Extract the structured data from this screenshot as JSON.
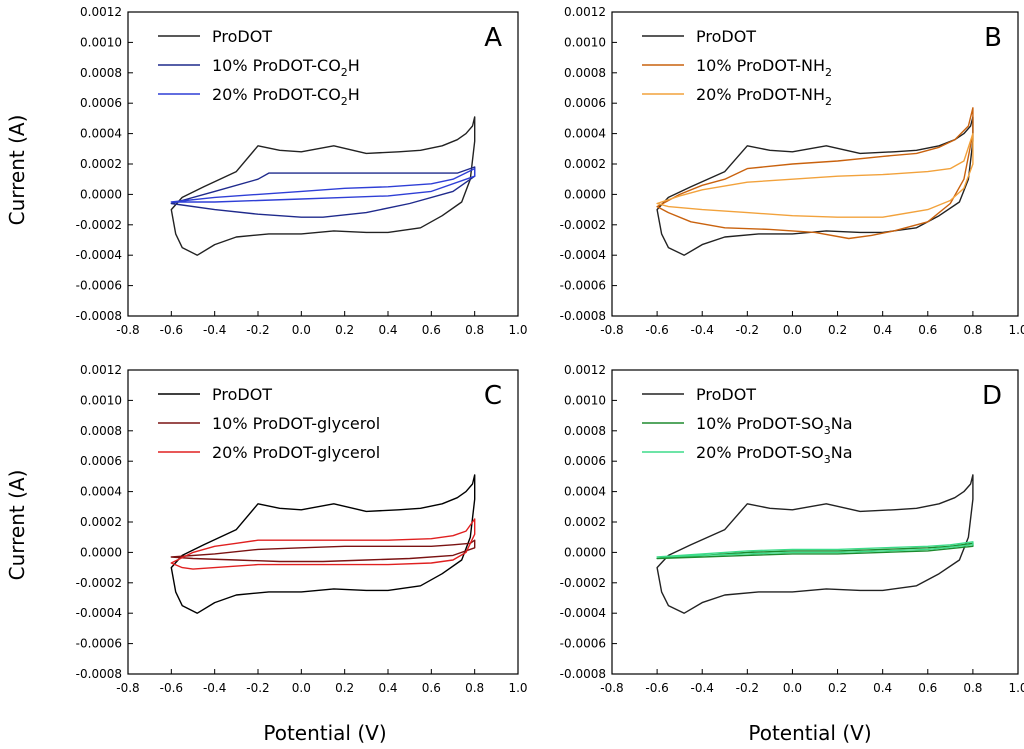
{
  "figure": {
    "y_axis_title": "Current (A)",
    "x_axis_title": "Potential (V)"
  },
  "chart_data": [
    {
      "type": "line",
      "panel_label": "A",
      "xlabel": "Potential (V)",
      "ylabel": "Current (A)",
      "xlim": [
        -0.8,
        1.0
      ],
      "ylim": [
        -0.0008,
        0.0012
      ],
      "x_ticks": [
        "-0.8",
        "-0.6",
        "-0.4",
        "-0.2",
        "0.0",
        "0.2",
        "0.4",
        "0.6",
        "0.8",
        "1.0"
      ],
      "y_ticks": [
        "-0.0008",
        "-0.0006",
        "-0.0004",
        "-0.0002",
        "0.0000",
        "0.0002",
        "0.0004",
        "0.0006",
        "0.0008",
        "0.0010",
        "0.0012"
      ],
      "legend": [
        {
          "label": "ProDOT",
          "sub": "",
          "tail": "",
          "color": "#222222"
        },
        {
          "label": "10% ProDOT-CO",
          "sub": "2",
          "tail": "H",
          "color": "#1f2a8c"
        },
        {
          "label": "20% ProDOT-CO",
          "sub": "2",
          "tail": "H",
          "color": "#2f3fd6"
        }
      ],
      "series": [
        {
          "name": "ProDOT",
          "color": "#222222",
          "x": [
            -0.6,
            -0.55,
            -0.45,
            -0.3,
            -0.2,
            -0.1,
            0.0,
            0.15,
            0.3,
            0.45,
            0.55,
            0.65,
            0.72,
            0.76,
            0.79,
            0.8,
            0.8,
            0.78,
            0.74,
            0.65,
            0.55,
            0.4,
            0.3,
            0.15,
            0.0,
            -0.15,
            -0.3,
            -0.4,
            -0.48,
            -0.55,
            -0.58,
            -0.6
          ],
          "y": [
            -0.0001,
            -2e-05,
            5e-05,
            0.00015,
            0.00032,
            0.00029,
            0.00028,
            0.00032,
            0.00027,
            0.00028,
            0.00029,
            0.00032,
            0.00036,
            0.0004,
            0.00045,
            0.00051,
            0.00035,
            0.0001,
            -5e-05,
            -0.00014,
            -0.00022,
            -0.00025,
            -0.00025,
            -0.00024,
            -0.00026,
            -0.00026,
            -0.00028,
            -0.00033,
            -0.0004,
            -0.00035,
            -0.00026,
            -0.0001
          ]
        },
        {
          "name": "10% ProDOT-CO2H",
          "color": "#1f2a8c",
          "x": [
            -0.6,
            -0.4,
            -0.2,
            -0.15,
            -0.1,
            0.0,
            0.2,
            0.4,
            0.6,
            0.72,
            0.8,
            0.8,
            0.7,
            0.5,
            0.3,
            0.1,
            0.0,
            -0.2,
            -0.4,
            -0.6
          ],
          "y": [
            -6e-05,
            2e-05,
            0.0001,
            0.00014,
            0.00014,
            0.00014,
            0.00014,
            0.00014,
            0.00014,
            0.00014,
            0.00018,
            0.00012,
            2e-05,
            -6e-05,
            -0.00012,
            -0.00015,
            -0.00015,
            -0.00013,
            -0.0001,
            -6e-05
          ]
        },
        {
          "name": "20% ProDOT-CO2H",
          "color": "#2f3fd6",
          "x": [
            -0.6,
            -0.4,
            -0.2,
            0.0,
            0.2,
            0.4,
            0.6,
            0.7,
            0.8,
            0.8,
            0.6,
            0.4,
            0.2,
            0.0,
            -0.2,
            -0.4,
            -0.6
          ],
          "y": [
            -5e-05,
            -2e-05,
            0.0,
            2e-05,
            4e-05,
            5e-05,
            7e-05,
            0.0001,
            0.00017,
            0.00012,
            2e-05,
            -1e-05,
            -2e-05,
            -3e-05,
            -4e-05,
            -5e-05,
            -5e-05
          ]
        }
      ]
    },
    {
      "type": "line",
      "panel_label": "B",
      "xlabel": "Potential (V)",
      "ylabel": "Current (A)",
      "xlim": [
        -0.8,
        1.0
      ],
      "ylim": [
        -0.0008,
        0.0012
      ],
      "x_ticks": [
        "-0.8",
        "-0.6",
        "-0.4",
        "-0.2",
        "0.0",
        "0.2",
        "0.4",
        "0.6",
        "0.8",
        "1.0"
      ],
      "y_ticks": [
        "-0.0008",
        "-0.0006",
        "-0.0004",
        "-0.0002",
        "0.0000",
        "0.0002",
        "0.0004",
        "0.0006",
        "0.0008",
        "0.0010",
        "0.0012"
      ],
      "legend": [
        {
          "label": "ProDOT",
          "sub": "",
          "tail": "",
          "color": "#222222"
        },
        {
          "label": "10% ProDOT-NH",
          "sub": "2",
          "tail": "",
          "color": "#c9620e"
        },
        {
          "label": "20% ProDOT-NH",
          "sub": "2",
          "tail": "",
          "color": "#f2a23c"
        }
      ],
      "series": [
        {
          "name": "ProDOT",
          "color": "#222222",
          "x": [
            -0.6,
            -0.55,
            -0.45,
            -0.3,
            -0.2,
            -0.1,
            0.0,
            0.15,
            0.3,
            0.45,
            0.55,
            0.65,
            0.72,
            0.76,
            0.79,
            0.8,
            0.8,
            0.78,
            0.74,
            0.65,
            0.55,
            0.4,
            0.3,
            0.15,
            0.0,
            -0.15,
            -0.3,
            -0.4,
            -0.48,
            -0.55,
            -0.58,
            -0.6
          ],
          "y": [
            -0.0001,
            -2e-05,
            5e-05,
            0.00015,
            0.00032,
            0.00029,
            0.00028,
            0.00032,
            0.00027,
            0.00028,
            0.00029,
            0.00032,
            0.00036,
            0.0004,
            0.00045,
            0.00051,
            0.00035,
            0.0001,
            -5e-05,
            -0.00014,
            -0.00022,
            -0.00025,
            -0.00025,
            -0.00024,
            -0.00026,
            -0.00026,
            -0.00028,
            -0.00033,
            -0.0004,
            -0.00035,
            -0.00026,
            -0.0001
          ]
        },
        {
          "name": "10% ProDOT-NH2",
          "color": "#c9620e",
          "x": [
            -0.6,
            -0.5,
            -0.4,
            -0.3,
            -0.2,
            0.0,
            0.2,
            0.4,
            0.55,
            0.65,
            0.72,
            0.78,
            0.8,
            0.8,
            0.76,
            0.7,
            0.6,
            0.45,
            0.35,
            0.25,
            0.1,
            -0.1,
            -0.3,
            -0.45,
            -0.55,
            -0.6
          ],
          "y": [
            -8e-05,
            0.0,
            6e-05,
            0.0001,
            0.00017,
            0.0002,
            0.00022,
            0.00025,
            0.00027,
            0.00031,
            0.00036,
            0.00045,
            0.00057,
            0.0004,
            0.0001,
            -6e-05,
            -0.00018,
            -0.00024,
            -0.00027,
            -0.00029,
            -0.00025,
            -0.00023,
            -0.00022,
            -0.00018,
            -0.00012,
            -8e-05
          ]
        },
        {
          "name": "20% ProDOT-NH2",
          "color": "#f2a23c",
          "x": [
            -0.6,
            -0.5,
            -0.4,
            -0.2,
            0.0,
            0.2,
            0.4,
            0.6,
            0.7,
            0.76,
            0.8,
            0.8,
            0.76,
            0.7,
            0.6,
            0.4,
            0.2,
            0.0,
            -0.2,
            -0.4,
            -0.55,
            -0.6
          ],
          "y": [
            -6e-05,
            -1e-05,
            3e-05,
            8e-05,
            0.0001,
            0.00012,
            0.00013,
            0.00015,
            0.00017,
            0.00022,
            0.0004,
            0.0002,
            4e-05,
            -4e-05,
            -0.0001,
            -0.00015,
            -0.00015,
            -0.00014,
            -0.00012,
            -0.0001,
            -8e-05,
            -6e-05
          ]
        }
      ]
    },
    {
      "type": "line",
      "panel_label": "C",
      "xlabel": "Potential (V)",
      "ylabel": "Current (A)",
      "xlim": [
        -0.8,
        1.0
      ],
      "ylim": [
        -0.0008,
        0.0012
      ],
      "x_ticks": [
        "-0.8",
        "-0.6",
        "-0.4",
        "-0.2",
        "0.0",
        "0.2",
        "0.4",
        "0.6",
        "0.8",
        "1.0"
      ],
      "y_ticks": [
        "-0.0008",
        "-0.0006",
        "-0.0004",
        "-0.0002",
        "0.0000",
        "0.0002",
        "0.0004",
        "0.0006",
        "0.0008",
        "0.0010",
        "0.0012"
      ],
      "legend": [
        {
          "label": "ProDOT",
          "sub": "",
          "tail": "",
          "color": "#000000"
        },
        {
          "label": "10% ProDOT-glycerol",
          "sub": "",
          "tail": "",
          "color": "#7a1212"
        },
        {
          "label": "20% ProDOT-glycerol",
          "sub": "",
          "tail": "",
          "color": "#e02020"
        }
      ],
      "series": [
        {
          "name": "ProDOT",
          "color": "#000000",
          "x": [
            -0.6,
            -0.55,
            -0.45,
            -0.3,
            -0.2,
            -0.1,
            0.0,
            0.15,
            0.3,
            0.45,
            0.55,
            0.65,
            0.72,
            0.76,
            0.79,
            0.8,
            0.8,
            0.78,
            0.74,
            0.65,
            0.55,
            0.4,
            0.3,
            0.15,
            0.0,
            -0.15,
            -0.3,
            -0.4,
            -0.48,
            -0.55,
            -0.58,
            -0.6
          ],
          "y": [
            -0.0001,
            -2e-05,
            5e-05,
            0.00015,
            0.00032,
            0.00029,
            0.00028,
            0.00032,
            0.00027,
            0.00028,
            0.00029,
            0.00032,
            0.00036,
            0.0004,
            0.00045,
            0.00051,
            0.00035,
            0.0001,
            -5e-05,
            -0.00014,
            -0.00022,
            -0.00025,
            -0.00025,
            -0.00024,
            -0.00026,
            -0.00026,
            -0.00028,
            -0.00033,
            -0.0004,
            -0.00035,
            -0.00026,
            -0.0001
          ]
        },
        {
          "name": "10% ProDOT-glycerol",
          "color": "#7a1212",
          "x": [
            -0.6,
            -0.4,
            -0.2,
            0.0,
            0.2,
            0.4,
            0.6,
            0.7,
            0.78,
            0.8,
            0.8,
            0.7,
            0.5,
            0.3,
            0.1,
            -0.1,
            -0.3,
            -0.5,
            -0.6
          ],
          "y": [
            -3e-05,
            -1e-05,
            2e-05,
            3e-05,
            4e-05,
            4e-05,
            4e-05,
            5e-05,
            6e-05,
            8e-05,
            3e-05,
            -2e-05,
            -4e-05,
            -5e-05,
            -6e-05,
            -6e-05,
            -5e-05,
            -4e-05,
            -3e-05
          ]
        },
        {
          "name": "20% ProDOT-glycerol",
          "color": "#e02020",
          "x": [
            -0.6,
            -0.5,
            -0.4,
            -0.3,
            -0.2,
            0.0,
            0.2,
            0.4,
            0.6,
            0.7,
            0.76,
            0.8,
            0.8,
            0.76,
            0.7,
            0.6,
            0.4,
            0.2,
            0.0,
            -0.2,
            -0.4,
            -0.5,
            -0.55,
            -0.6
          ],
          "y": [
            -7e-05,
            0.0,
            4e-05,
            6e-05,
            8e-05,
            8e-05,
            8e-05,
            8e-05,
            9e-05,
            0.00011,
            0.00014,
            0.00022,
            0.00012,
            0.0,
            -5e-05,
            -7e-05,
            -8e-05,
            -8e-05,
            -8e-05,
            -8e-05,
            -0.0001,
            -0.00011,
            -0.0001,
            -7e-05
          ]
        }
      ]
    },
    {
      "type": "line",
      "panel_label": "D",
      "xlabel": "Potential (V)",
      "ylabel": "Current (A)",
      "xlim": [
        -0.8,
        1.0
      ],
      "ylim": [
        -0.0008,
        0.0012
      ],
      "x_ticks": [
        "-0.8",
        "-0.6",
        "-0.4",
        "-0.2",
        "0.0",
        "0.2",
        "0.4",
        "0.6",
        "0.8",
        "1.0"
      ],
      "y_ticks": [
        "-0.0008",
        "-0.0006",
        "-0.0004",
        "-0.0002",
        "0.0000",
        "0.0002",
        "0.0004",
        "0.0006",
        "0.0008",
        "0.0010",
        "0.0012"
      ],
      "legend": [
        {
          "label": "ProDOT",
          "sub": "",
          "tail": "",
          "color": "#222222"
        },
        {
          "label": "10% ProDOT-SO",
          "sub": "3",
          "tail": "Na",
          "color": "#1e8a2e"
        },
        {
          "label": "20% ProDOT-SO",
          "sub": "3",
          "tail": "Na",
          "color": "#3ddc8a"
        }
      ],
      "series": [
        {
          "name": "ProDOT",
          "color": "#222222",
          "x": [
            -0.6,
            -0.55,
            -0.45,
            -0.3,
            -0.2,
            -0.1,
            0.0,
            0.15,
            0.3,
            0.45,
            0.55,
            0.65,
            0.72,
            0.76,
            0.79,
            0.8,
            0.8,
            0.78,
            0.74,
            0.65,
            0.55,
            0.4,
            0.3,
            0.15,
            0.0,
            -0.15,
            -0.3,
            -0.4,
            -0.48,
            -0.55,
            -0.58,
            -0.6
          ],
          "y": [
            -0.0001,
            -2e-05,
            5e-05,
            0.00015,
            0.00032,
            0.00029,
            0.00028,
            0.00032,
            0.00027,
            0.00028,
            0.00029,
            0.00032,
            0.00036,
            0.0004,
            0.00045,
            0.00051,
            0.00035,
            0.0001,
            -5e-05,
            -0.00014,
            -0.00022,
            -0.00025,
            -0.00025,
            -0.00024,
            -0.00026,
            -0.00026,
            -0.00028,
            -0.00033,
            -0.0004,
            -0.00035,
            -0.00026,
            -0.0001
          ]
        },
        {
          "name": "10% ProDOT-SO3Na",
          "color": "#1e8a2e",
          "x": [
            -0.6,
            -0.4,
            -0.2,
            0.0,
            0.2,
            0.4,
            0.6,
            0.7,
            0.8,
            0.8,
            0.6,
            0.4,
            0.2,
            0.0,
            -0.2,
            -0.4,
            -0.6
          ],
          "y": [
            -4e-05,
            -2e-05,
            0.0,
            1e-05,
            1e-05,
            2e-05,
            3e-05,
            4e-05,
            6e-05,
            4e-05,
            1e-05,
            0.0,
            -1e-05,
            -1e-05,
            -2e-05,
            -3e-05,
            -4e-05
          ]
        },
        {
          "name": "20% ProDOT-SO3Na",
          "color": "#3ddc8a",
          "x": [
            -0.6,
            -0.4,
            -0.2,
            0.0,
            0.2,
            0.4,
            0.6,
            0.7,
            0.8,
            0.8,
            0.6,
            0.4,
            0.2,
            0.0,
            -0.2,
            -0.4,
            -0.6
          ],
          "y": [
            -3e-05,
            -1e-05,
            1e-05,
            2e-05,
            2e-05,
            3e-05,
            4e-05,
            5e-05,
            7e-05,
            5e-05,
            2e-05,
            1e-05,
            0.0,
            0.0,
            -1e-05,
            -2e-05,
            -3e-05
          ]
        }
      ]
    }
  ]
}
